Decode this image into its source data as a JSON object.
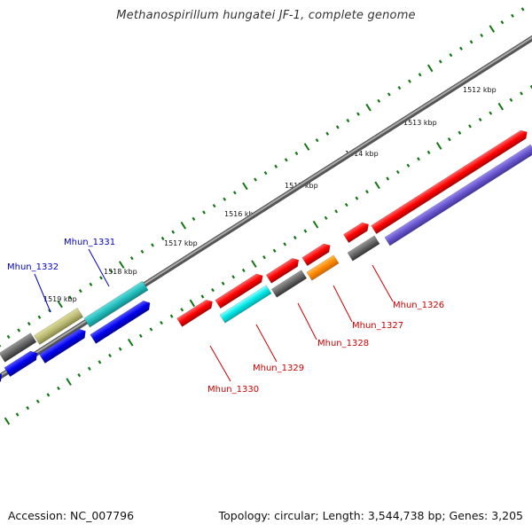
{
  "title": "Methanospirillum hungatei JF-1, complete genome",
  "footer": {
    "accession": "Accession: NC_007796",
    "topology": "Topology: circular; Length: 3,544,738 bp; Genes: 3,205"
  },
  "colors": {
    "forward_cds": "#ff0000",
    "reverse_cds": "#0000ff",
    "grey": "#666666",
    "cyan": "#00dddd",
    "teal": "#22bbbb",
    "khaki": "#bbbb77",
    "orange": "#ff8800",
    "purple": "#6655cc",
    "backbone": "#777777",
    "ticks": "#117711",
    "label_forward": "#cc0000",
    "label_reverse": "#0000cc"
  },
  "kbp_ticks": [
    "1512 kbp",
    "1513 kbp",
    "1514 kbp",
    "1515 kbp",
    "1516 kbp",
    "1517 kbp",
    "1518 kbp",
    "1519 kbp"
  ],
  "gene_labels": [
    {
      "text": "Mhun_1326",
      "color": "label_forward"
    },
    {
      "text": "Mhun_1327",
      "color": "label_forward"
    },
    {
      "text": "Mhun_1328",
      "color": "label_forward"
    },
    {
      "text": "Mhun_1329",
      "color": "label_forward"
    },
    {
      "text": "Mhun_1330",
      "color": "label_forward"
    },
    {
      "text": "Mhun_1331",
      "color": "label_reverse"
    },
    {
      "text": "Mhun_1332",
      "color": "label_reverse"
    }
  ]
}
